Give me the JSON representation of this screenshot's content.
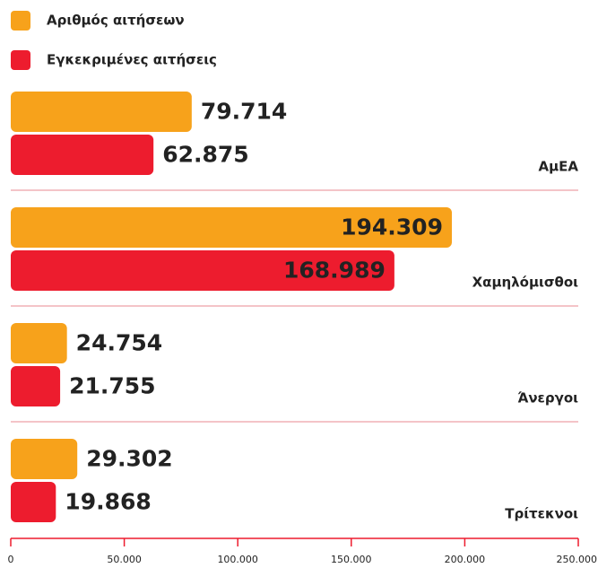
{
  "chart_data": {
    "type": "bar",
    "orientation": "horizontal",
    "categories": [
      "ΑμΕΑ",
      "Χαμηλόμισθοι",
      "Άνεργοι",
      "Τρίτεκνοι"
    ],
    "series": [
      {
        "name": "Αριθμός αιτήσεων",
        "color": "#f7a21b",
        "values": [
          79714,
          194309,
          24754,
          29302
        ],
        "value_labels": [
          "79.714",
          "194.309",
          "24.754",
          "29.302"
        ]
      },
      {
        "name": "Εγκεκριμένες αιτήσεις",
        "color": "#ed1c2e",
        "values": [
          62875,
          168989,
          21755,
          19868
        ],
        "value_labels": [
          "62.875",
          "168.989",
          "21.755",
          "19.868"
        ]
      }
    ],
    "xlim": [
      0,
      250000
    ],
    "xticks": [
      0,
      {
        "value": 50000,
        "label": "50.000"
      },
      {
        "value": 100000,
        "label": "100.000"
      },
      {
        "value": 150000,
        "label": "150.000"
      },
      {
        "value": 200000,
        "label": "200.000"
      },
      {
        "value": 250000,
        "label": "250.000"
      }
    ],
    "legend": "top-left"
  }
}
